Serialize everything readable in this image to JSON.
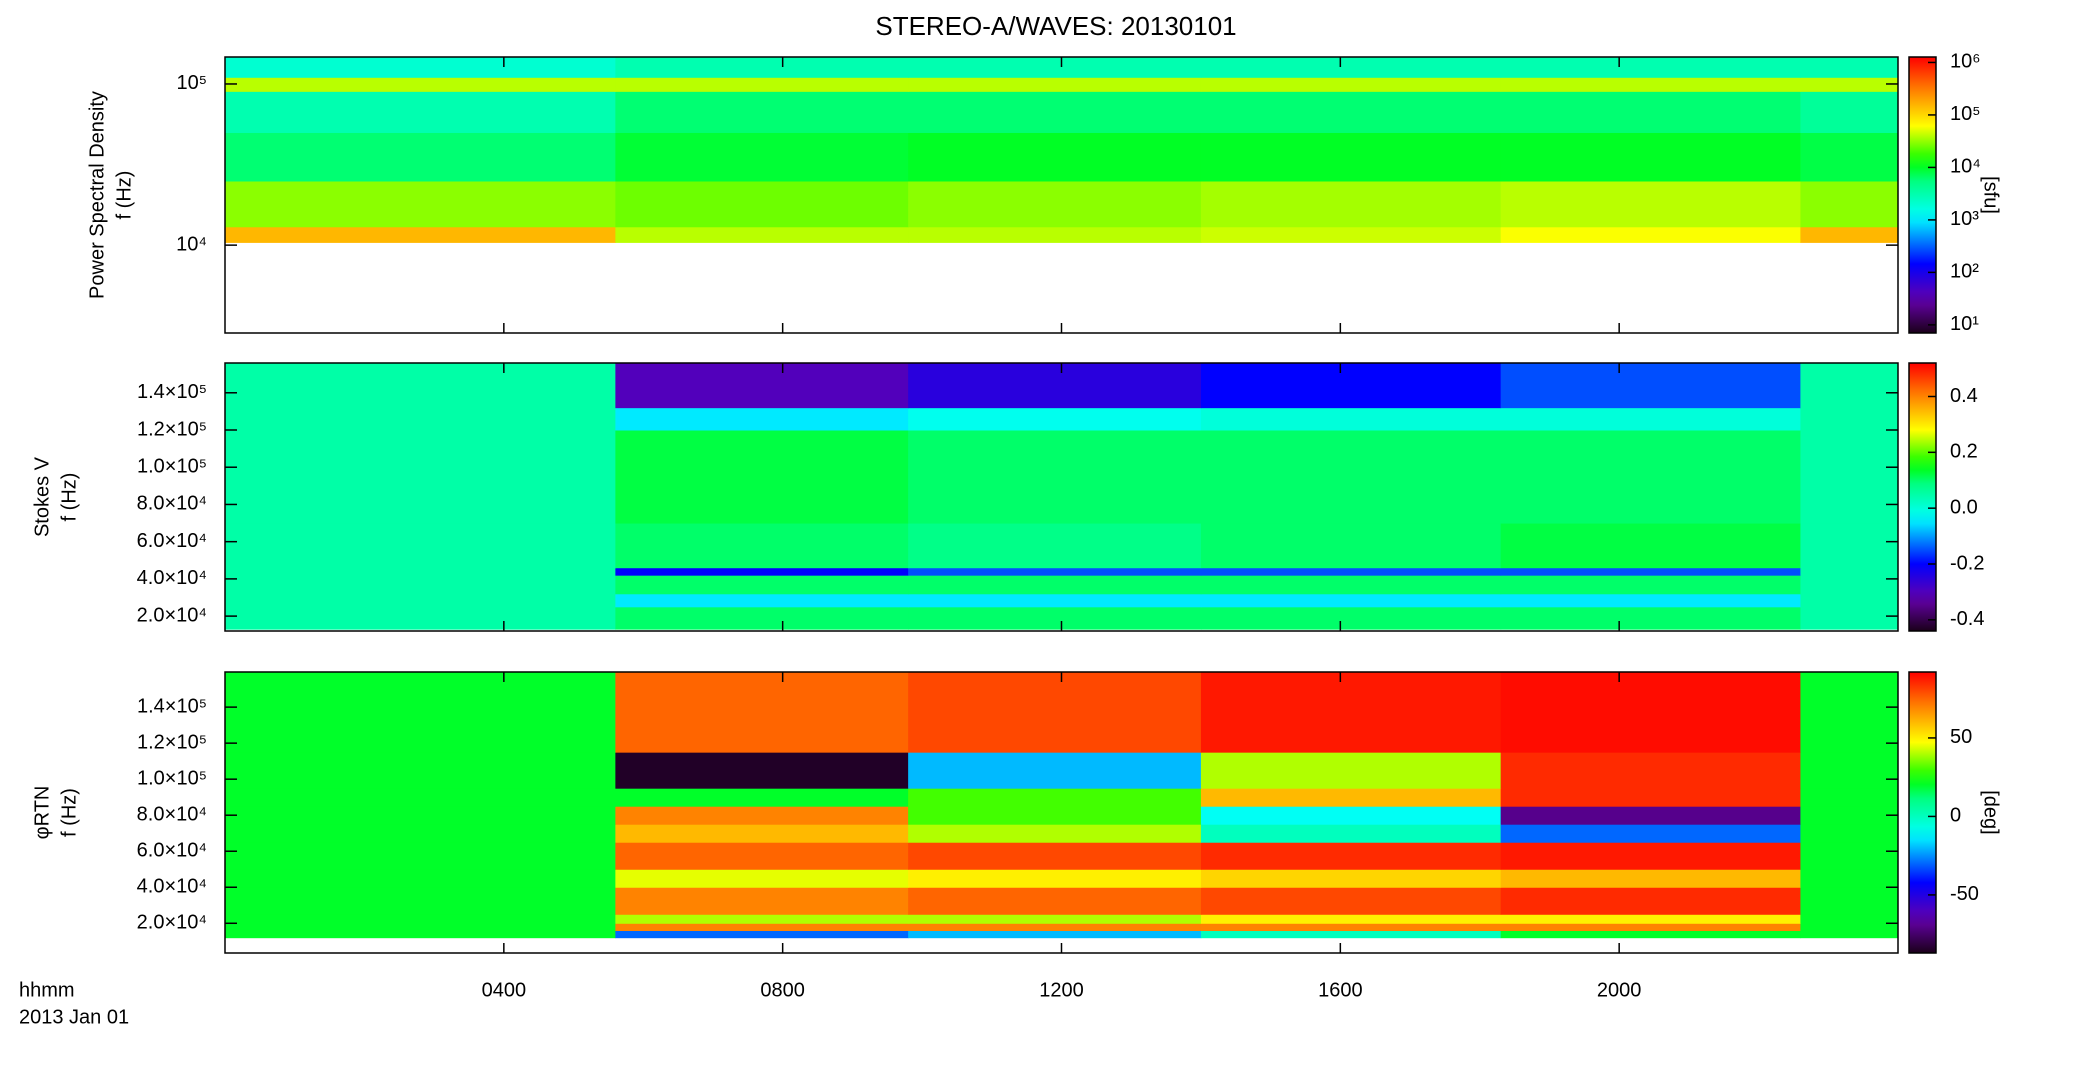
{
  "chart_data": [
    {
      "type": "heatmap",
      "title": "STEREO-A/WAVES: 20130101",
      "y_label": [
        "Power Spectral Density",
        "f (Hz)"
      ],
      "xlim": [
        0,
        24
      ],
      "xticks": [
        4,
        8,
        12,
        16,
        20
      ],
      "ylim": [
        2850,
        147000
      ],
      "ylog": true,
      "yticks": [
        {
          "value": 10000,
          "label": "10⁴"
        },
        {
          "value": 100000,
          "label": "10⁵"
        }
      ],
      "x": [
        0,
        5.6,
        9.8,
        14.0,
        18.3,
        22.6,
        24
      ],
      "y": [
        10400,
        13000,
        25000,
        50000,
        90000,
        110000,
        147000
      ],
      "z": [
        [
          150000,
          40000,
          40000,
          45000,
          60000,
          150000
        ],
        [
          30000,
          25000,
          30000,
          35000,
          40000,
          30000
        ],
        [
          6000,
          9000,
          10000,
          10000,
          10000,
          8000
        ],
        [
          3000,
          6000,
          6000,
          6000,
          6000,
          4000
        ],
        [
          40000,
          40000,
          40000,
          40000,
          40000,
          40000
        ],
        [
          2000,
          3000,
          3000,
          3000,
          3000,
          3000
        ]
      ],
      "zlim": [
        7,
        1270000
      ],
      "zlog": true,
      "zticks": [
        {
          "value": 10,
          "label": "10¹"
        },
        {
          "value": 100,
          "label": "10²"
        },
        {
          "value": 1000,
          "label": "10³"
        },
        {
          "value": 10000,
          "label": "10⁴"
        },
        {
          "value": 100000,
          "label": "10⁵"
        },
        {
          "value": 1000000,
          "label": "10⁶"
        }
      ],
      "colorbar_label": "[sfu]",
      "colormap": "rainbow"
    },
    {
      "type": "heatmap",
      "y_label": [
        "Stokes V",
        "f (Hz)"
      ],
      "xlim": [
        0,
        24
      ],
      "xticks": [
        4,
        8,
        12,
        16,
        20
      ],
      "ylim": [
        12000,
        156000
      ],
      "ylog": false,
      "yticks": [
        {
          "value": 20000,
          "label": "2.0×10⁴"
        },
        {
          "value": 40000,
          "label": "4.0×10⁴"
        },
        {
          "value": 60000,
          "label": "6.0×10⁴"
        },
        {
          "value": 80000,
          "label": "8.0×10⁴"
        },
        {
          "value": 100000,
          "label": "1.0×10⁵"
        },
        {
          "value": 120000,
          "label": "1.2×10⁵"
        },
        {
          "value": 140000,
          "label": "1.4×10⁵"
        }
      ],
      "x": [
        0,
        5.6,
        9.8,
        14.0,
        18.3,
        22.6,
        24
      ],
      "y": [
        13000,
        25000,
        32000,
        42000,
        46000,
        70000,
        120000,
        132000,
        156000
      ],
      "z": [
        [
          0.05,
          0.1,
          0.1,
          0.1,
          0.1,
          0.05
        ],
        [
          0.05,
          -0.05,
          -0.05,
          -0.05,
          -0.05,
          0.05
        ],
        [
          0.05,
          0.1,
          0.1,
          0.1,
          0.1,
          0.05
        ],
        [
          0.05,
          -0.2,
          -0.15,
          -0.15,
          -0.15,
          0.05
        ],
        [
          0.05,
          0.1,
          0.08,
          0.1,
          0.12,
          0.05
        ],
        [
          0.05,
          0.12,
          0.1,
          0.1,
          0.1,
          0.05
        ],
        [
          0.05,
          -0.05,
          -0.02,
          0,
          0,
          0.05
        ],
        [
          0.05,
          -0.3,
          -0.25,
          -0.2,
          -0.15,
          0.05
        ]
      ],
      "zlim": [
        -0.44,
        0.52
      ],
      "zlog": false,
      "zticks": [
        -0.4,
        -0.2,
        {
          "value": 0,
          "label": "0.0"
        },
        0.2,
        0.4
      ],
      "colormap": "rainbow"
    },
    {
      "type": "heatmap",
      "y_label": [
        "φRTN",
        "f (Hz)"
      ],
      "xlim": [
        0,
        24
      ],
      "xticks": [
        {
          "value": 4,
          "label": "0400"
        },
        {
          "value": 8,
          "label": "0800"
        },
        {
          "value": 12,
          "label": "1200"
        },
        {
          "value": 16,
          "label": "1600"
        },
        {
          "value": 20,
          "label": "2000"
        }
      ],
      "xlabel": [
        "hhmm",
        "2013 Jan 01"
      ],
      "ylim": [
        3500,
        159500
      ],
      "ylog": false,
      "yticks": [
        {
          "value": 20000,
          "label": "2.0×10⁴"
        },
        {
          "value": 40000,
          "label": "4.0×10⁴"
        },
        {
          "value": 60000,
          "label": "6.0×10⁴"
        },
        {
          "value": 80000,
          "label": "8.0×10⁴"
        },
        {
          "value": 100000,
          "label": "1.0×10⁵"
        },
        {
          "value": 120000,
          "label": "1.2×10⁵"
        },
        {
          "value": 140000,
          "label": "1.4×10⁵"
        }
      ],
      "x": [
        0,
        5.6,
        9.8,
        14.0,
        18.3,
        22.6,
        24
      ],
      "y": [
        12000,
        16000,
        20000,
        25000,
        40000,
        50000,
        65000,
        75000,
        85000,
        95000,
        115000,
        159500
      ],
      "z": [
        [
          20,
          -30,
          -20,
          0,
          20,
          20
        ],
        [
          20,
          70,
          70,
          70,
          70,
          20
        ],
        [
          20,
          40,
          40,
          50,
          50,
          20
        ],
        [
          20,
          70,
          75,
          80,
          85,
          20
        ],
        [
          20,
          45,
          50,
          55,
          60,
          20
        ],
        [
          20,
          75,
          80,
          85,
          88,
          20
        ],
        [
          20,
          60,
          40,
          0,
          -30,
          20
        ],
        [
          20,
          70,
          30,
          -10,
          -70,
          20
        ],
        [
          20,
          20,
          30,
          60,
          85,
          20
        ],
        [
          20,
          -85,
          -20,
          40,
          85,
          20
        ],
        [
          20,
          75,
          80,
          88,
          90,
          20
        ]
      ],
      "zlim": [
        -87,
        92
      ],
      "zlog": false,
      "zticks": [
        -50,
        0,
        50
      ],
      "colorbar_label": "[deg]",
      "colormap": "rainbow"
    }
  ]
}
